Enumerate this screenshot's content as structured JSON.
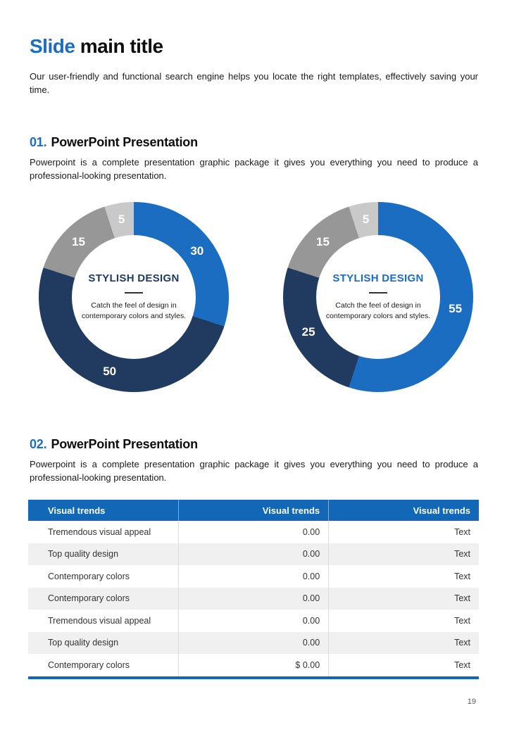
{
  "title": {
    "accent": "Slide",
    "rest": " main title"
  },
  "intro": "Our user-friendly and functional search engine helps you locate the right templates, effectively saving your time.",
  "sections": [
    {
      "number": "01.",
      "heading": "PowerPoint Presentation",
      "body": "Powerpoint is a complete presentation graphic package it gives you everything you need to produce a professional-looking presentation."
    },
    {
      "number": "02.",
      "heading": "PowerPoint Presentation",
      "body": "Powerpoint is a complete presentation graphic package it gives you everything you need to produce a professional-looking presentation."
    }
  ],
  "chart_data": [
    {
      "type": "pie",
      "subtype": "donut",
      "start_angle_deg": 0,
      "segments": [
        {
          "label": "30",
          "value": 30,
          "color": "#1b6dc1"
        },
        {
          "label": "50",
          "value": 50,
          "color": "#203a60"
        },
        {
          "label": "15",
          "value": 15,
          "color": "#979797"
        },
        {
          "label": "5",
          "value": 5,
          "color": "#c9c9c9"
        }
      ],
      "center_title": "STYLISH DESIGN",
      "center_title_color": "#203a60",
      "center_text": "Catch the feel of design in contemporary colors and styles."
    },
    {
      "type": "pie",
      "subtype": "donut",
      "start_angle_deg": 0,
      "segments": [
        {
          "label": "55",
          "value": 55,
          "color": "#1b6dc1"
        },
        {
          "label": "25",
          "value": 25,
          "color": "#203a60"
        },
        {
          "label": "15",
          "value": 15,
          "color": "#979797"
        },
        {
          "label": "5",
          "value": 5,
          "color": "#c9c9c9"
        }
      ],
      "center_title": "STYLISH DESIGN",
      "center_title_color": "#1b6dc1",
      "center_text": "Catch the feel of design in contemporary colors and styles."
    }
  ],
  "table": {
    "headers": [
      "Visual trends",
      "Visual trends",
      "Visual trends"
    ],
    "rows": [
      [
        "Tremendous visual appeal",
        "0.00",
        "Text"
      ],
      [
        "Top quality design",
        "0.00",
        "Text"
      ],
      [
        "Contemporary colors",
        "0.00",
        "Text"
      ],
      [
        "Contemporary colors",
        "0.00",
        "Text"
      ],
      [
        "Tremendous visual appeal",
        "0.00",
        "Text"
      ],
      [
        "Top quality design",
        "0.00",
        "Text"
      ],
      [
        "Contemporary colors",
        "$ 0.00",
        "Text"
      ]
    ]
  },
  "colors": {
    "accent_blue": "#1b6dc1",
    "table_header_blue": "#1268b6",
    "navy": "#203a60",
    "gray": "#979797",
    "light_gray": "#c9c9c9"
  },
  "page": {
    "number": "19"
  }
}
